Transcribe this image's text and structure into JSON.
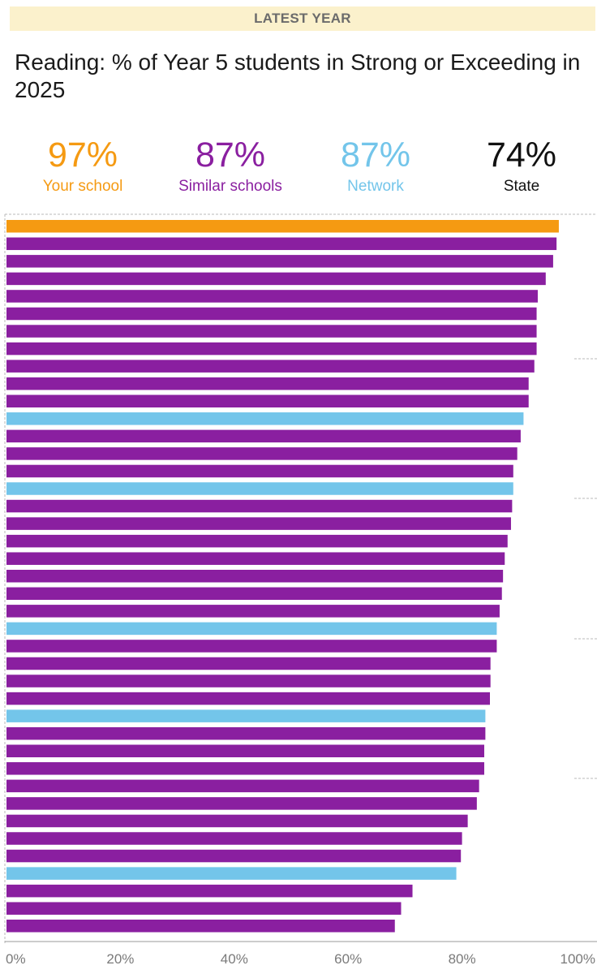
{
  "banner": "LATEST YEAR",
  "title": "Reading: % of Year 5 students in Strong or Exceeding in 2025",
  "kpis": [
    {
      "value": "97%",
      "label": "Your school",
      "color": "#f59a12"
    },
    {
      "value": "87%",
      "label": "Similar schools",
      "color": "#8a1fa0"
    },
    {
      "value": "87%",
      "label": "Network",
      "color": "#73c5ea"
    },
    {
      "value": "74%",
      "label": "State",
      "color": "#111111"
    }
  ],
  "chart_data": {
    "type": "bar",
    "orientation": "horizontal",
    "xlim": [
      0,
      100
    ],
    "x_ticks": [
      "0%",
      "20%",
      "40%",
      "60%",
      "80%",
      "100%"
    ],
    "x_tick_values": [
      0,
      20,
      40,
      60,
      80,
      100
    ],
    "grid": true,
    "colors": {
      "Your school": "#f59a12",
      "Similar schools": "#8a1fa0",
      "Network": "#73c5ea"
    },
    "bars": [
      {
        "group": "Your school",
        "value": 97
      },
      {
        "group": "Similar schools",
        "value": 96.6
      },
      {
        "group": "Similar schools",
        "value": 96
      },
      {
        "group": "Similar schools",
        "value": 94.7
      },
      {
        "group": "Similar schools",
        "value": 93.3
      },
      {
        "group": "Similar schools",
        "value": 93.1
      },
      {
        "group": "Similar schools",
        "value": 93.1
      },
      {
        "group": "Similar schools",
        "value": 93.1
      },
      {
        "group": "Similar schools",
        "value": 92.7
      },
      {
        "group": "Similar schools",
        "value": 91.7
      },
      {
        "group": "Similar schools",
        "value": 91.7
      },
      {
        "group": "Network",
        "value": 90.8
      },
      {
        "group": "Similar schools",
        "value": 90.3
      },
      {
        "group": "Similar schools",
        "value": 89.7
      },
      {
        "group": "Similar schools",
        "value": 89
      },
      {
        "group": "Network",
        "value": 89
      },
      {
        "group": "Similar schools",
        "value": 88.8
      },
      {
        "group": "Similar schools",
        "value": 88.6
      },
      {
        "group": "Similar schools",
        "value": 88
      },
      {
        "group": "Similar schools",
        "value": 87.5
      },
      {
        "group": "Similar schools",
        "value": 87.2
      },
      {
        "group": "Similar schools",
        "value": 87
      },
      {
        "group": "Similar schools",
        "value": 86.6
      },
      {
        "group": "Network",
        "value": 86.1
      },
      {
        "group": "Similar schools",
        "value": 86.1
      },
      {
        "group": "Similar schools",
        "value": 85
      },
      {
        "group": "Similar schools",
        "value": 85
      },
      {
        "group": "Similar schools",
        "value": 84.9
      },
      {
        "group": "Network",
        "value": 84.1
      },
      {
        "group": "Similar schools",
        "value": 84.1
      },
      {
        "group": "Similar schools",
        "value": 83.9
      },
      {
        "group": "Similar schools",
        "value": 83.9
      },
      {
        "group": "Similar schools",
        "value": 83
      },
      {
        "group": "Similar schools",
        "value": 82.6
      },
      {
        "group": "Similar schools",
        "value": 81
      },
      {
        "group": "Similar schools",
        "value": 80
      },
      {
        "group": "Similar schools",
        "value": 79.8
      },
      {
        "group": "Network",
        "value": 79
      },
      {
        "group": "Similar schools",
        "value": 71.3
      },
      {
        "group": "Similar schools",
        "value": 69.3
      },
      {
        "group": "Similar schools",
        "value": 68.2
      }
    ]
  }
}
